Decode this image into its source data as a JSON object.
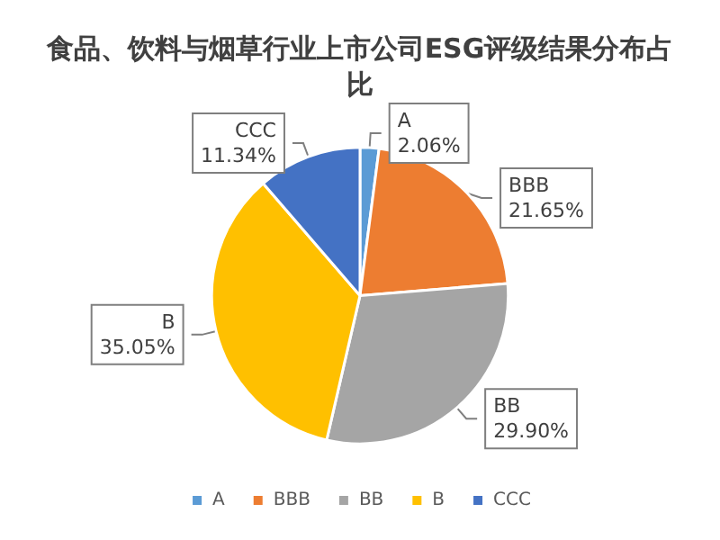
{
  "chart_data": {
    "type": "pie",
    "title": "食品、饮料与烟草行业上市公司ESG评级结果分布占比",
    "categories": [
      "A",
      "BBB",
      "BB",
      "B",
      "CCC"
    ],
    "values": [
      2.06,
      21.65,
      29.9,
      35.05,
      11.34
    ],
    "colors": [
      "#5b9bd5",
      "#ed7d31",
      "#a5a5a5",
      "#ffc000",
      "#4472c4"
    ],
    "value_labels": [
      "2.06%",
      "21.65%",
      "29.90%",
      "35.05%",
      "11.34%"
    ],
    "legend": "bottom"
  }
}
